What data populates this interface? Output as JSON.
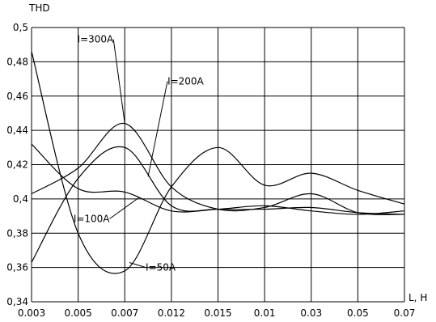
{
  "chart_data": {
    "type": "line",
    "title": "",
    "xlabel": "L, H",
    "ylabel": "THD",
    "categories": [
      "0.003",
      "0.005",
      "0.007",
      "0.012",
      "0.015",
      "0.01",
      "0.03",
      "0.05",
      "0.07"
    ],
    "ylim": [
      0.34,
      0.5
    ],
    "yticks": [
      "0,34",
      "0,36",
      "0,38",
      "0,4",
      "0,42",
      "0,44",
      "0,46",
      "0,48",
      "0,5"
    ],
    "grid": true,
    "colors": {
      "line": "#000000",
      "grid": "#000000",
      "background": "#ffffff"
    },
    "series": [
      {
        "name": "I=300A",
        "values": [
          0.403,
          0.418,
          0.444,
          0.407,
          0.394,
          0.395,
          0.403,
          0.392,
          0.391
        ],
        "label_point": 2.0
      },
      {
        "name": "I=200A",
        "values": [
          0.363,
          0.412,
          0.43,
          0.396,
          0.394,
          0.394,
          0.395,
          0.392,
          0.391
        ],
        "label_point": 2.5
      },
      {
        "name": "I=100A",
        "values": [
          0.432,
          0.406,
          0.404,
          0.393,
          0.394,
          0.396,
          0.393,
          0.391,
          0.393
        ],
        "label_point": 2.3
      },
      {
        "name": "I=50A",
        "values": [
          0.486,
          0.38,
          0.358,
          0.407,
          0.43,
          0.408,
          0.415,
          0.405,
          0.397
        ],
        "label_point": 2.1
      }
    ]
  }
}
